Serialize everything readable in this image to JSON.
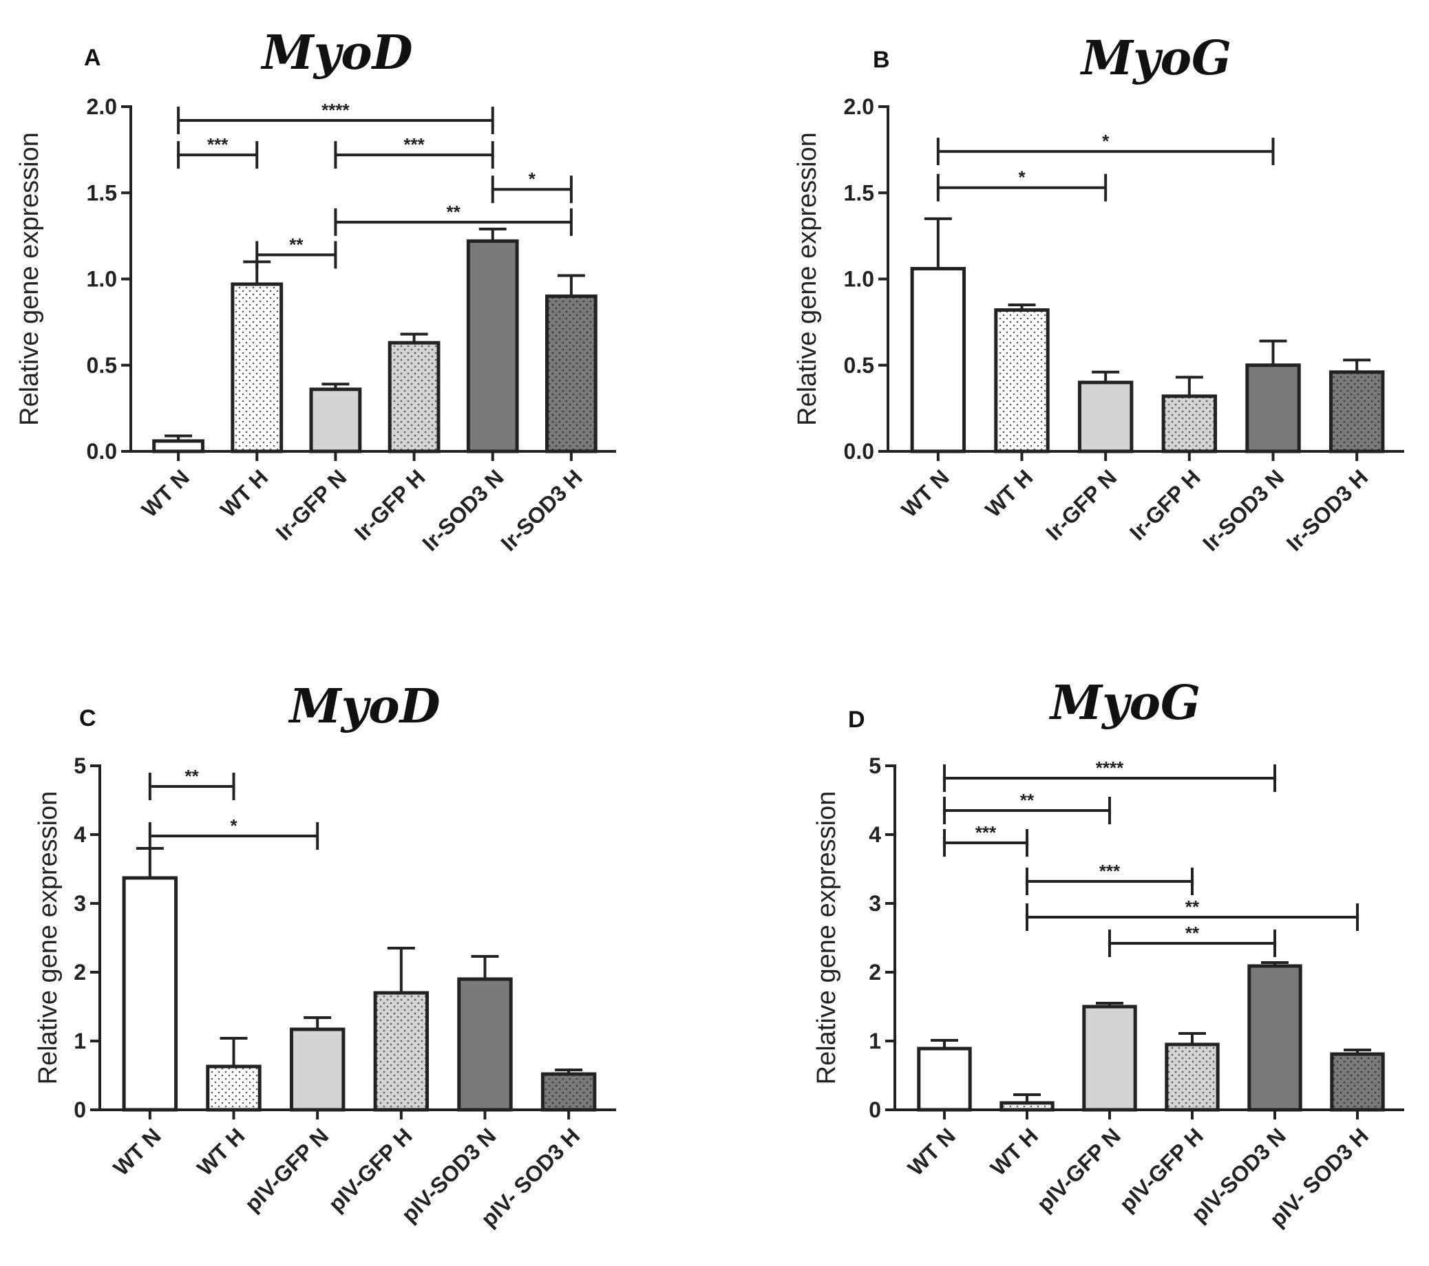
{
  "colors": {
    "axis": "#222222",
    "bar_outline": "#222222",
    "fill_white": "#ffffff",
    "fill_light_gray": "#d4d4d4",
    "fill_dark_gray": "#7a7a7a"
  },
  "chart_data": [
    {
      "panel": "A",
      "type": "bar",
      "title": "MyoD",
      "ylabel": "Relative gene expression",
      "xlabel": "",
      "ylim": [
        0,
        2.0
      ],
      "yticks": [
        "0.0",
        "0.5",
        "1.0",
        "1.5",
        "2.0"
      ],
      "categories": [
        "WT N",
        "WT H",
        "Ir-GFP N",
        "Ir-GFP H",
        "Ir-SOD3 N",
        "Ir-SOD3 H"
      ],
      "values": [
        0.06,
        0.97,
        0.36,
        0.63,
        1.22,
        0.9
      ],
      "errors": [
        0.03,
        0.13,
        0.03,
        0.05,
        0.07,
        0.12
      ],
      "fills": [
        "white",
        "white-dots",
        "light-gray",
        "light-gray-dots",
        "dark-gray",
        "dark-gray-dots"
      ],
      "significance": [
        {
          "from": 0,
          "to": 4,
          "y": 1.92,
          "label": "****"
        },
        {
          "from": 0,
          "to": 1,
          "y": 1.72,
          "label": "***"
        },
        {
          "from": 2,
          "to": 4,
          "y": 1.72,
          "label": "***"
        },
        {
          "from": 4,
          "to": 5,
          "y": 1.52,
          "label": "*"
        },
        {
          "from": 2,
          "to": 5,
          "y": 1.33,
          "label": "**"
        },
        {
          "from": 1,
          "to": 2,
          "y": 1.14,
          "label": "**"
        }
      ]
    },
    {
      "panel": "B",
      "type": "bar",
      "title": "MyoG",
      "ylabel": "Relative gene expression",
      "xlabel": "",
      "ylim": [
        0,
        2.0
      ],
      "yticks": [
        "0.0",
        "0.5",
        "1.0",
        "1.5",
        "2.0"
      ],
      "categories": [
        "WT N",
        "WT H",
        "Ir-GFP N",
        "Ir-GFP H",
        "Ir-SOD3 N",
        "Ir-SOD3 H"
      ],
      "values": [
        1.06,
        0.82,
        0.4,
        0.32,
        0.5,
        0.46
      ],
      "errors": [
        0.29,
        0.03,
        0.06,
        0.11,
        0.14,
        0.07
      ],
      "fills": [
        "white",
        "white-dots",
        "light-gray",
        "light-gray-dots",
        "dark-gray",
        "dark-gray-dots"
      ],
      "significance": [
        {
          "from": 0,
          "to": 4,
          "y": 1.74,
          "label": "*"
        },
        {
          "from": 0,
          "to": 2,
          "y": 1.53,
          "label": "*"
        }
      ]
    },
    {
      "panel": "C",
      "type": "bar",
      "title": "MyoD",
      "ylabel": "Relative gene expression",
      "xlabel": "",
      "ylim": [
        0,
        5
      ],
      "yticks": [
        "0",
        "1",
        "2",
        "3",
        "4",
        "5"
      ],
      "categories": [
        "WT N",
        "WT H",
        "pIV-GFP N",
        "pIV-GFP H",
        "pIV-SOD3 N",
        "pIV- SOD3 H"
      ],
      "values": [
        3.37,
        0.63,
        1.17,
        1.7,
        1.9,
        0.52
      ],
      "errors": [
        0.43,
        0.41,
        0.17,
        0.65,
        0.33,
        0.06
      ],
      "fills": [
        "white",
        "white-dots",
        "light-gray",
        "light-gray-dots",
        "dark-gray",
        "dark-gray-dots"
      ],
      "significance": [
        {
          "from": 0,
          "to": 1,
          "y": 4.7,
          "label": "**"
        },
        {
          "from": 0,
          "to": 2,
          "y": 3.98,
          "label": "*"
        }
      ]
    },
    {
      "panel": "D",
      "type": "bar",
      "title": "MyoG",
      "ylabel": "Relative gene expression",
      "xlabel": "",
      "ylim": [
        0,
        5
      ],
      "yticks": [
        "0",
        "1",
        "2",
        "3",
        "4",
        "5"
      ],
      "categories": [
        "WT N",
        "WT H",
        "pIV-GFP N",
        "pIV-GFP H",
        "pIV-SOD3 N",
        "pIV- SOD3 H"
      ],
      "values": [
        0.89,
        0.1,
        1.5,
        0.95,
        2.09,
        0.81
      ],
      "errors": [
        0.12,
        0.12,
        0.05,
        0.16,
        0.05,
        0.06
      ],
      "fills": [
        "white",
        "white-dots",
        "light-gray",
        "light-gray-dots",
        "dark-gray",
        "dark-gray-dots"
      ],
      "significance": [
        {
          "from": 0,
          "to": 4,
          "y": 4.82,
          "label": "****"
        },
        {
          "from": 0,
          "to": 2,
          "y": 4.35,
          "label": "**"
        },
        {
          "from": 0,
          "to": 1,
          "y": 3.88,
          "label": "***"
        },
        {
          "from": 1,
          "to": 3,
          "y": 3.32,
          "label": "***"
        },
        {
          "from": 1,
          "to": 5,
          "y": 2.8,
          "label": "**"
        },
        {
          "from": 2,
          "to": 4,
          "y": 2.42,
          "label": "**"
        }
      ]
    }
  ]
}
